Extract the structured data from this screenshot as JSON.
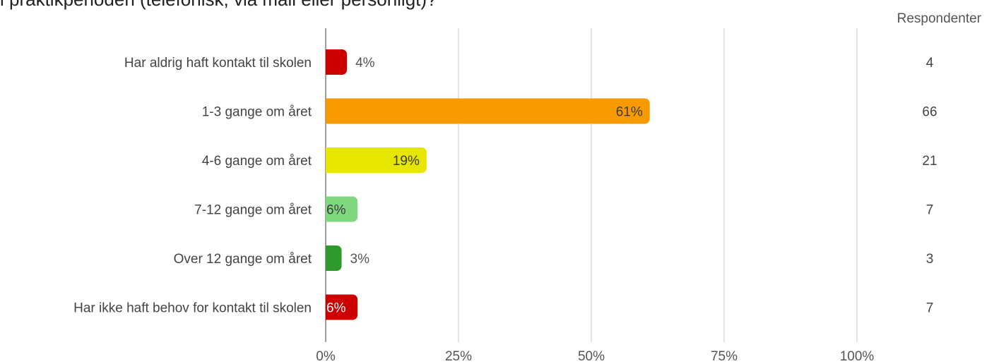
{
  "title": "i praktikperioden (telefonisk, via mail eller personligt)?",
  "respondents_header": "Respondenter",
  "chart_data": {
    "type": "bar",
    "orientation": "horizontal",
    "categories": [
      "Har aldrig haft kontakt til skolen",
      "1-3 gange om året",
      "4-6 gange om året",
      "7-12 gange om året",
      "Over 12 gange om året",
      "Har ikke haft behov for kontakt til skolen"
    ],
    "values": [
      4,
      61,
      19,
      6,
      3,
      6
    ],
    "value_labels": [
      "4%",
      "61%",
      "19%",
      "6%",
      "3%",
      "6%"
    ],
    "respondents": [
      "4",
      "66",
      "21",
      "7",
      "3",
      "7"
    ],
    "colors": [
      "#cc0000",
      "#f79a00",
      "#e6e600",
      "#7fd87f",
      "#2e9a2e",
      "#cc0000"
    ],
    "label_colors": [
      "#3c3c3c",
      "#3c3c3c",
      "#3c3c3c",
      "#3c3c3c",
      "#3c3c3c",
      "#ffffff"
    ],
    "xlim": [
      0,
      100
    ],
    "x_ticks": [
      0,
      25,
      50,
      75,
      100
    ],
    "x_tick_labels": [
      "0%",
      "25%",
      "50%",
      "75%",
      "100%"
    ],
    "grid": true
  }
}
